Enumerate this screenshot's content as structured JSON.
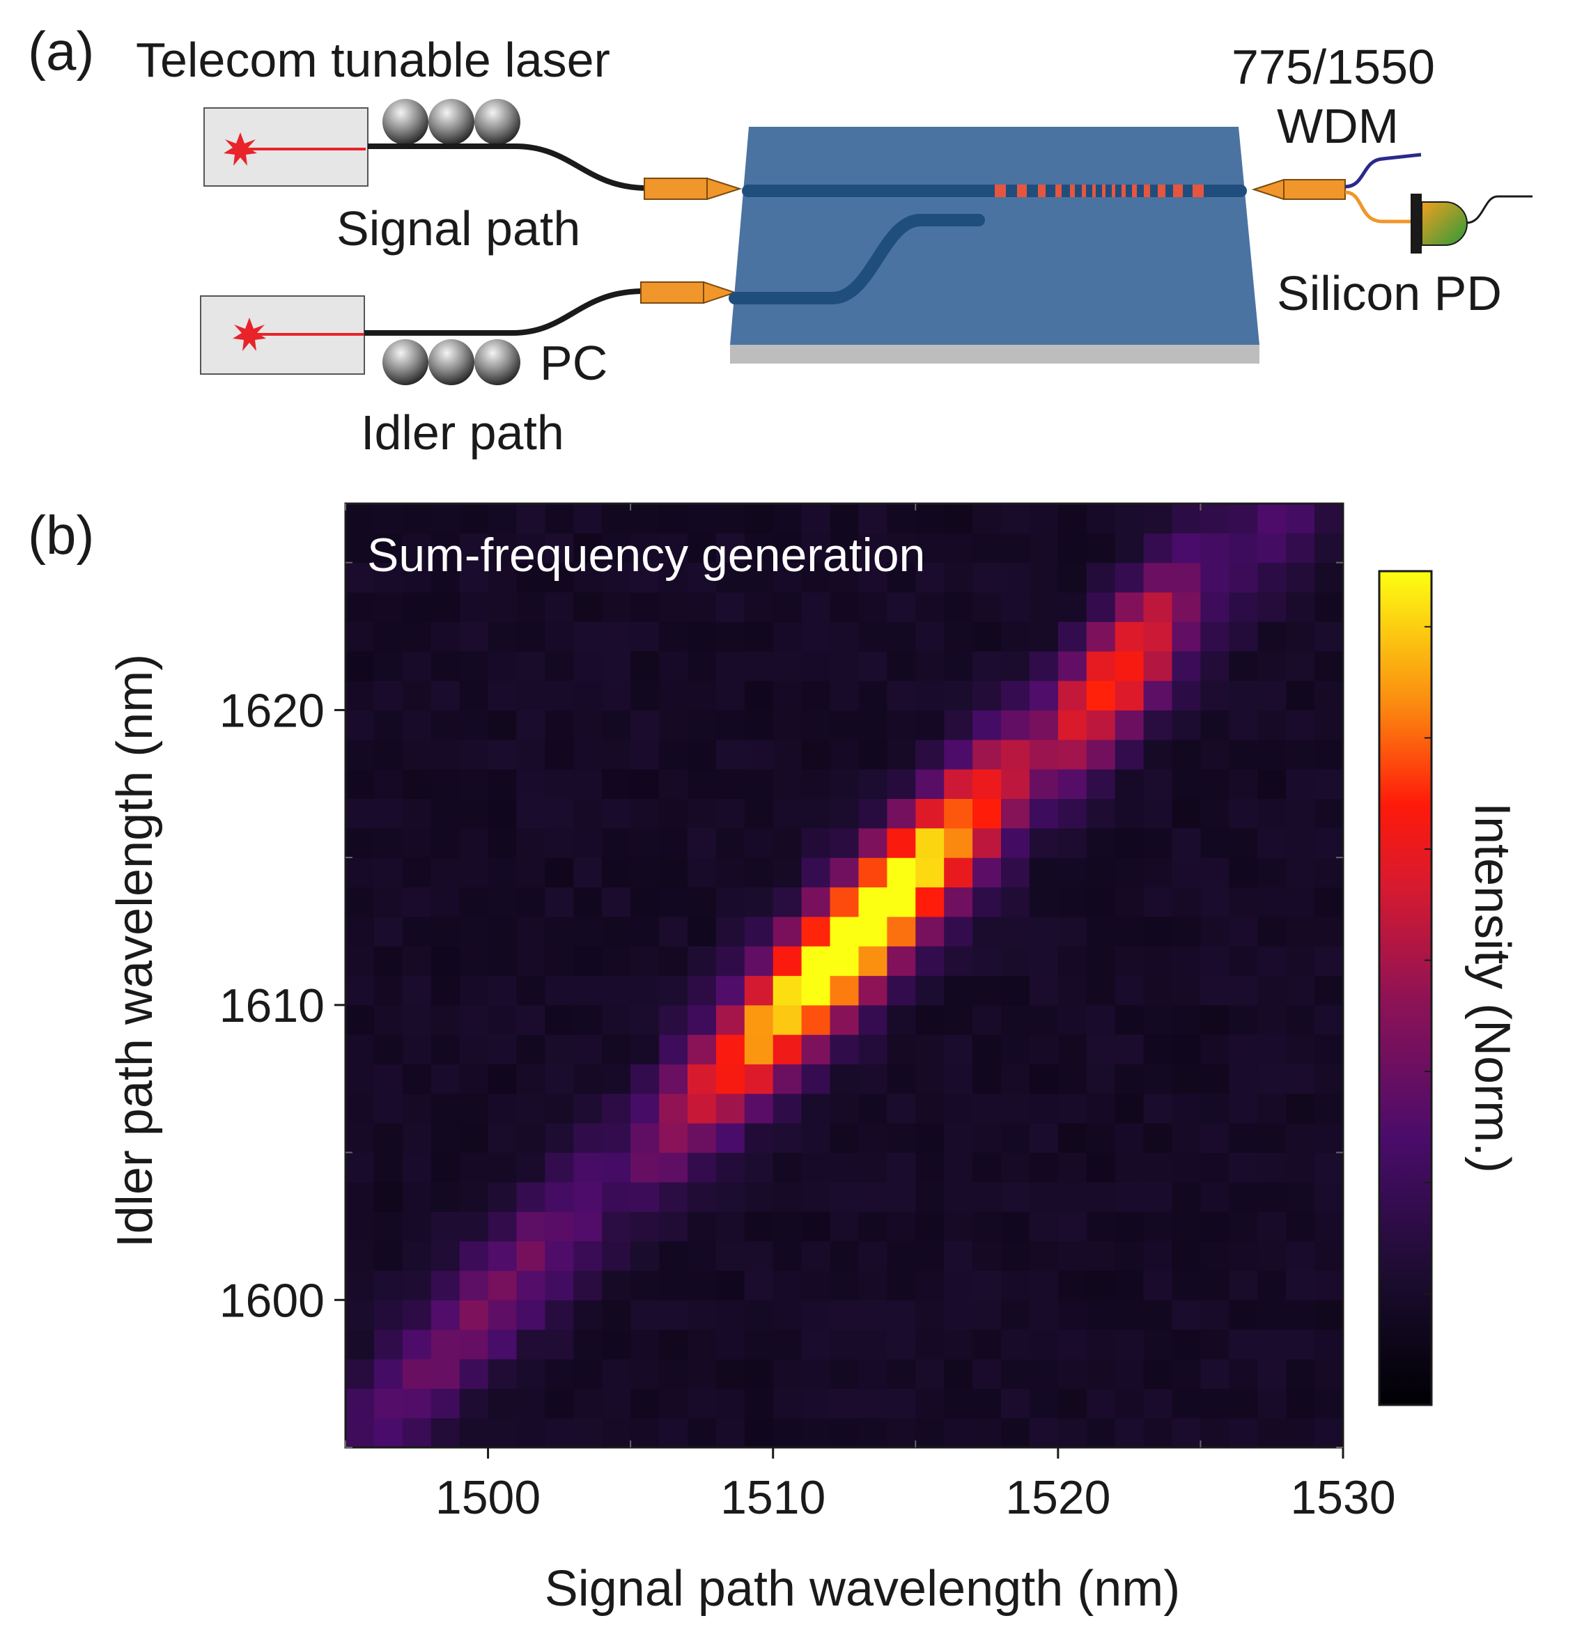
{
  "panel_a": {
    "label": "(a)",
    "laser_label": "Telecom tunable laser",
    "signal_label": "Signal path",
    "idler_label": "Idler path",
    "pc_label": "PC",
    "wdm_label_line1": "775/1550",
    "wdm_label_line2": "WDM",
    "pd_label": "Silicon PD",
    "colors": {
      "chip": "#4a73a1",
      "waveguide": "#1f4e7d",
      "poling": "#e8553f",
      "coupler": "#f0962a",
      "laser": "#e8232a"
    }
  },
  "panel_b": {
    "label": "(b)",
    "annotation": "Sum-frequency generation",
    "colorbar_label": "Intensity (Norm.)"
  },
  "chart_data": {
    "type": "heatmap",
    "title": "Sum-frequency generation",
    "xlabel": "Signal path wavelength (nm)",
    "ylabel": "Idler path wavelength (nm)",
    "xlim": [
      1495,
      1530
    ],
    "ylim": [
      1595,
      1627
    ],
    "xticks": [
      1500,
      1510,
      1520,
      1530
    ],
    "yticks": [
      1600,
      1610,
      1620
    ],
    "grid_step_nm": 1,
    "colormap": "inferno-like",
    "colorbar_label": "Intensity (Norm.)",
    "features": [
      {
        "name": "peak",
        "x": 1513,
        "y": 1611,
        "value": 1.0
      },
      {
        "name": "ridge",
        "from": [
          1496,
          1596
        ],
        "to": [
          1526,
          1625
        ]
      }
    ]
  }
}
